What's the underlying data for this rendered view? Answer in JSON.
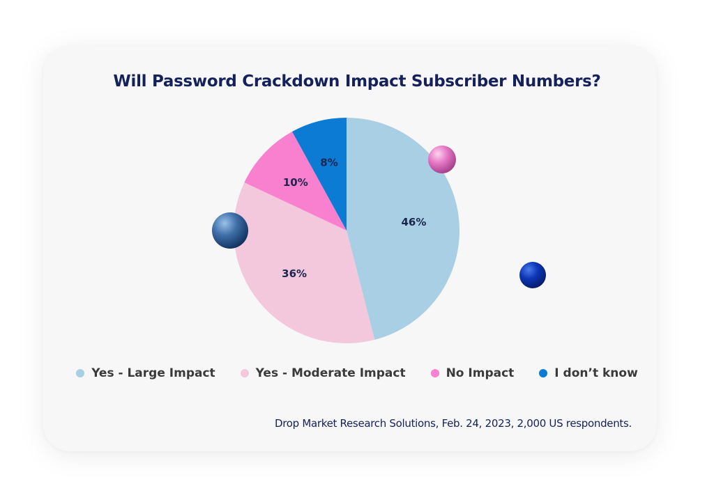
{
  "chart_data": {
    "type": "pie",
    "title": "Will Password Crackdown Impact Subscriber Numbers?",
    "slices": [
      {
        "label": "Yes - Large Impact",
        "value": 46,
        "display": "46%",
        "color": "#a8cfe3"
      },
      {
        "label": "Yes - Moderate Impact",
        "value": 36,
        "display": "36%",
        "color": "#f4c8dc"
      },
      {
        "label": "No Impact",
        "value": 10,
        "display": "10%",
        "color": "#f97fcf"
      },
      {
        "label": "I don’t know",
        "value": 8,
        "display": "8%",
        "color": "#0b7bd4"
      }
    ],
    "legend_position": "bottom",
    "source": "Drop Market Research Solutions, Feb. 24, 2023, 2,000 US respondents."
  }
}
